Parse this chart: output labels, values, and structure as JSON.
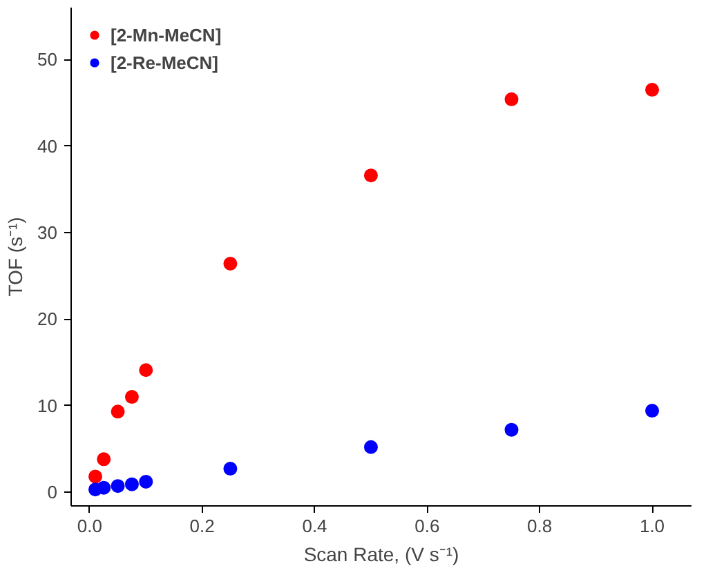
{
  "chart_data": {
    "type": "scatter",
    "xlabel": "Scan Rate, (V s⁻¹)",
    "ylabel": "TOF (s⁻¹)",
    "x": [
      0.01,
      0.025,
      0.05,
      0.075,
      0.1,
      0.25,
      0.5,
      0.75,
      1.0
    ],
    "series": [
      {
        "name": "[2-Mn-MeCN]",
        "color": "#ff0000",
        "values": [
          1.8,
          3.8,
          9.3,
          11.0,
          14.1,
          26.4,
          36.6,
          45.4,
          46.5
        ]
      },
      {
        "name": "[2-Re-MeCN]",
        "color": "#0000ff",
        "values": [
          0.3,
          0.5,
          0.7,
          0.9,
          1.2,
          2.7,
          5.2,
          7.2,
          9.4
        ]
      }
    ],
    "xlim": [
      -0.033,
      1.07
    ],
    "ylim": [
      -1.6,
      56
    ],
    "xticks": [
      {
        "value": 0,
        "label": "0.0"
      },
      0.2,
      0.4,
      0.6,
      0.8,
      {
        "value": 1,
        "label": "1.0"
      }
    ],
    "yticks": [
      0,
      10,
      20,
      30,
      40,
      50
    ],
    "grid": false,
    "legend": "top left",
    "marker": "circle"
  }
}
